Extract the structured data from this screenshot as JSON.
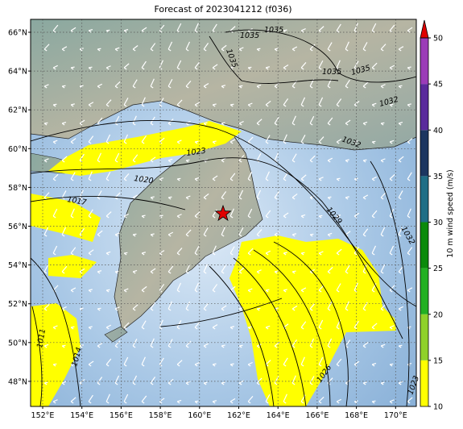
{
  "title": "Forecast of 2023041212 (f036)",
  "lon_labels": [
    "152°E",
    "154°E",
    "156°E",
    "158°E",
    "160°E",
    "162°E",
    "164°E",
    "166°E",
    "168°E",
    "170°E"
  ],
  "lat_labels": [
    "66°N",
    "64°N",
    "62°N",
    "60°N",
    "58°N",
    "56°N",
    "54°N",
    "52°N",
    "50°N",
    "48°N"
  ],
  "colorbar": {
    "label": "10 m wind speed (m/s)",
    "ticks": [
      10,
      15,
      20,
      25,
      30,
      35,
      40,
      45,
      50
    ],
    "colors": [
      "#ffff00",
      "#8fd12a",
      "#22b022",
      "#0b8a0b",
      "#1f6e86",
      "#1c3660",
      "#5a2a9c",
      "#9b3cb8"
    ],
    "extend_color": "#e00000"
  },
  "contour_labels": [
    "1035",
    "1035",
    "1035",
    "1035",
    "1035",
    "1032",
    "1032",
    "1023",
    "1020",
    "1017",
    "1029",
    "1032",
    "1026",
    "1011",
    "1014",
    "1023"
  ]
}
